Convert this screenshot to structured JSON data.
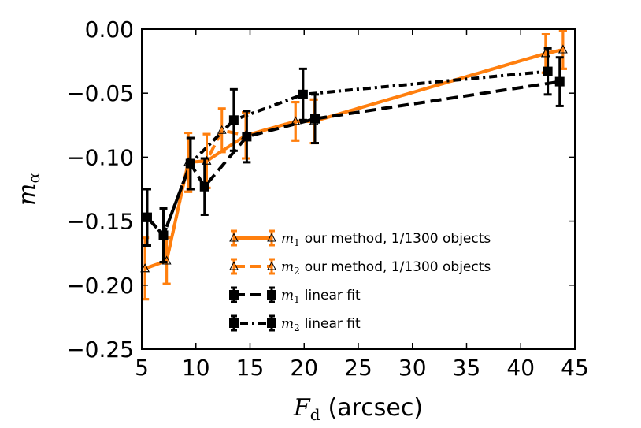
{
  "chart_data": {
    "type": "line",
    "title": "",
    "xlabel": {
      "symbol": "F",
      "subscript": "d",
      "unit": "(arcsec)"
    },
    "ylabel": {
      "symbol": "m",
      "subscript": "α"
    },
    "xlim": [
      5,
      45
    ],
    "ylim": [
      -0.25,
      0.0
    ],
    "xticks": [
      5,
      10,
      15,
      20,
      25,
      30,
      35,
      40,
      45
    ],
    "yticks": [
      0.0,
      -0.05,
      -0.1,
      -0.15,
      -0.2,
      -0.25
    ],
    "ytick_labels": [
      "0.00",
      "−0.05",
      "−0.10",
      "−0.15",
      "−0.20",
      "−0.25"
    ],
    "grid": false,
    "legend_location": "lower-right",
    "series": [
      {
        "name": "m1 our method, 1/1300 objects",
        "label_symbol": "m",
        "label_subscript": "1",
        "label_text": "our method, 1/1300 objects",
        "color": "#ff7f0e",
        "linestyle": "solid",
        "marker": "triangle",
        "x": [
          5.3,
          7.3,
          9.3,
          11.0,
          14.6,
          19.2,
          20.9,
          42.3,
          43.9
        ],
        "y": [
          -0.187,
          -0.181,
          -0.104,
          -0.103,
          -0.083,
          -0.072,
          -0.072,
          -0.019,
          -0.016
        ],
        "yerr": [
          0.024,
          0.018,
          0.023,
          0.021,
          0.018,
          0.015,
          0.017,
          0.015,
          0.015
        ]
      },
      {
        "name": "m2 our method, 1/1300 objects",
        "label_symbol": "m",
        "label_subscript": "2",
        "label_text": "our method, 1/1300 objects",
        "color": "#ff7f0e",
        "linestyle": "dashed",
        "marker": "triangle",
        "x": [
          5.3,
          7.3,
          9.3,
          11.0,
          12.4,
          14.6,
          19.2,
          20.9,
          42.3,
          43.9
        ],
        "y": [
          -0.187,
          -0.181,
          -0.104,
          -0.103,
          -0.079,
          -0.083,
          -0.072,
          -0.072,
          -0.019,
          -0.016
        ],
        "yerr": [
          0.024,
          0.018,
          0.023,
          0.021,
          0.017,
          0.018,
          0.015,
          0.017,
          0.015,
          0.015
        ]
      },
      {
        "name": "m1 linear fit",
        "label_symbol": "m",
        "label_subscript": "1",
        "label_text": "linear fit",
        "color": "#000000",
        "linestyle": "dashed",
        "marker": "square",
        "x": [
          5.5,
          7.0,
          9.5,
          10.8,
          14.7,
          21.0,
          43.6
        ],
        "y": [
          -0.147,
          -0.161,
          -0.105,
          -0.123,
          -0.084,
          -0.07,
          -0.041
        ],
        "yerr": [
          0.022,
          0.021,
          0.02,
          0.022,
          0.02,
          0.019,
          0.019
        ]
      },
      {
        "name": "m2 linear fit",
        "label_symbol": "m",
        "label_subscript": "2",
        "label_text": "linear fit",
        "color": "#000000",
        "linestyle": "dashdot",
        "marker": "square",
        "x": [
          5.5,
          7.0,
          9.5,
          13.5,
          19.9,
          42.5
        ],
        "y": [
          -0.147,
          -0.161,
          -0.105,
          -0.071,
          -0.051,
          -0.033
        ],
        "yerr": [
          0.022,
          0.021,
          0.02,
          0.024,
          0.02,
          0.018
        ]
      }
    ]
  }
}
